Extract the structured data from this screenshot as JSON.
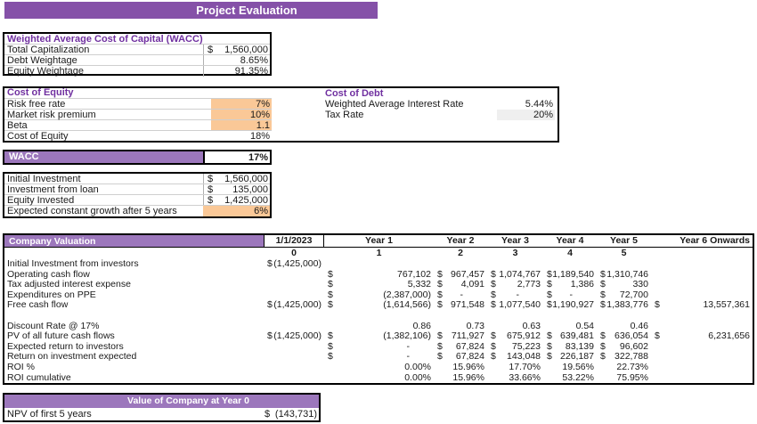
{
  "title": "Project Evaluation",
  "wacc_box": {
    "title": "Weighted Average Cost of Capital (WACC)",
    "rows": [
      {
        "label": "Total Capitalization",
        "prefix": "$",
        "value": "1,560,000"
      },
      {
        "label": "Debt Weightage",
        "prefix": "",
        "value": "8.65%"
      },
      {
        "label": "Equity Weightage",
        "prefix": "",
        "value": "91.35%"
      }
    ]
  },
  "cost_of_equity": {
    "title": "Cost of Equity",
    "rows": [
      {
        "label": "Risk free rate",
        "value": "7%"
      },
      {
        "label": "Market risk premium",
        "value": "10%"
      },
      {
        "label": "Beta",
        "value": "1.1"
      },
      {
        "label": "Cost of Equity",
        "value": "18%"
      }
    ]
  },
  "cost_of_debt": {
    "title": "Cost of Debt",
    "rows": [
      {
        "label": "Weighted Average Interest Rate",
        "value": "5.44%"
      },
      {
        "label": "Tax Rate",
        "value": "20%"
      }
    ]
  },
  "wacc_row": {
    "label": "WACC",
    "value": "17%"
  },
  "investment_box": {
    "rows": [
      {
        "label": "Initial Investment",
        "prefix": "$",
        "value": "1,560,000"
      },
      {
        "label": "Investment from loan",
        "prefix": "$",
        "value": "135,000"
      },
      {
        "label": "Equity Invested",
        "prefix": "$",
        "value": "1,425,000"
      },
      {
        "label": "Expected constant growth after 5 years",
        "prefix": "",
        "value": "6%"
      }
    ]
  },
  "valuation": {
    "title": "Company Valuation",
    "date_header": "1/1/2023",
    "year_headers": [
      "Year 1",
      "Year 2",
      "Year 3",
      "Year 4",
      "Year 5",
      "Year 6 Onwards"
    ],
    "period_indices": [
      "0",
      "1",
      "2",
      "3",
      "4",
      "5"
    ],
    "rows": [
      {
        "label": "Initial Investment from investors",
        "cells": [
          {
            "d": "$",
            "v": "(1,425,000)"
          },
          {
            "d": "",
            "v": ""
          },
          {
            "d": "",
            "v": ""
          },
          {
            "d": "",
            "v": ""
          },
          {
            "d": "",
            "v": ""
          },
          {
            "d": "",
            "v": ""
          },
          {
            "d": "",
            "v": ""
          }
        ]
      },
      {
        "label": "Operating cash flow",
        "cells": [
          {
            "d": "",
            "v": ""
          },
          {
            "d": "$",
            "v": "767,102"
          },
          {
            "d": "$",
            "v": "967,457"
          },
          {
            "d": "$",
            "v": "1,074,767"
          },
          {
            "d": "$",
            "v": "1,189,540"
          },
          {
            "d": "$",
            "v": "1,310,746"
          },
          {
            "d": "",
            "v": ""
          }
        ]
      },
      {
        "label": "Tax adjusted interest expense",
        "cells": [
          {
            "d": "",
            "v": ""
          },
          {
            "d": "$",
            "v": "5,332"
          },
          {
            "d": "$",
            "v": "4,091"
          },
          {
            "d": "$",
            "v": "2,773"
          },
          {
            "d": "$",
            "v": "1,386"
          },
          {
            "d": "$",
            "v": "330"
          },
          {
            "d": "",
            "v": ""
          }
        ]
      },
      {
        "label": "Expenditures on PPE",
        "cells": [
          {
            "d": "",
            "v": ""
          },
          {
            "d": "$",
            "v": "(2,387,000)"
          },
          {
            "d": "$",
            "v": "-"
          },
          {
            "d": "$",
            "v": "-"
          },
          {
            "d": "$",
            "v": "-"
          },
          {
            "d": "$",
            "v": "72,700"
          },
          {
            "d": "",
            "v": ""
          }
        ]
      },
      {
        "label": "Free cash flow",
        "cells": [
          {
            "d": "$",
            "v": "(1,425,000)"
          },
          {
            "d": "$",
            "v": "(1,614,566)"
          },
          {
            "d": "$",
            "v": "971,548"
          },
          {
            "d": "$",
            "v": "1,077,540"
          },
          {
            "d": "$",
            "v": "1,190,927"
          },
          {
            "d": "$",
            "v": "1,383,776"
          },
          {
            "d": "$",
            "v": "13,557,361"
          }
        ]
      },
      {
        "label": "",
        "cells": [
          {
            "d": "",
            "v": ""
          },
          {
            "d": "",
            "v": ""
          },
          {
            "d": "",
            "v": ""
          },
          {
            "d": "",
            "v": ""
          },
          {
            "d": "",
            "v": ""
          },
          {
            "d": "",
            "v": ""
          },
          {
            "d": "",
            "v": ""
          }
        ]
      },
      {
        "label": "Discount Rate @ 17%",
        "cells": [
          {
            "d": "",
            "v": ""
          },
          {
            "d": "",
            "v": "0.86"
          },
          {
            "d": "",
            "v": "0.73"
          },
          {
            "d": "",
            "v": "0.63"
          },
          {
            "d": "",
            "v": "0.54"
          },
          {
            "d": "",
            "v": "0.46"
          },
          {
            "d": "",
            "v": ""
          }
        ]
      },
      {
        "label": "PV of all future cash flows",
        "cells": [
          {
            "d": "$",
            "v": "(1,425,000)"
          },
          {
            "d": "$",
            "v": "(1,382,106)"
          },
          {
            "d": "$",
            "v": "711,927"
          },
          {
            "d": "$",
            "v": "675,912"
          },
          {
            "d": "$",
            "v": "639,481"
          },
          {
            "d": "$",
            "v": "636,054"
          },
          {
            "d": "$",
            "v": "6,231,656"
          }
        ]
      },
      {
        "label": "Expected return to investors",
        "cells": [
          {
            "d": "",
            "v": ""
          },
          {
            "d": "$",
            "v": "-"
          },
          {
            "d": "$",
            "v": "67,824"
          },
          {
            "d": "$",
            "v": "75,223"
          },
          {
            "d": "$",
            "v": "83,139"
          },
          {
            "d": "$",
            "v": "96,602"
          },
          {
            "d": "",
            "v": ""
          }
        ]
      },
      {
        "label": "Return on investment expected",
        "cells": [
          {
            "d": "",
            "v": ""
          },
          {
            "d": "$",
            "v": "-"
          },
          {
            "d": "$",
            "v": "67,824"
          },
          {
            "d": "$",
            "v": "143,048"
          },
          {
            "d": "$",
            "v": "226,187"
          },
          {
            "d": "$",
            "v": "322,788"
          },
          {
            "d": "",
            "v": ""
          }
        ]
      },
      {
        "label": "ROI %",
        "cells": [
          {
            "d": "",
            "v": ""
          },
          {
            "d": "",
            "v": "0.00%"
          },
          {
            "d": "",
            "v": "15.96%"
          },
          {
            "d": "",
            "v": "17.70%"
          },
          {
            "d": "",
            "v": "19.56%"
          },
          {
            "d": "",
            "v": "22.73%"
          },
          {
            "d": "",
            "v": ""
          }
        ]
      },
      {
        "label": "ROI cumulative",
        "cells": [
          {
            "d": "",
            "v": ""
          },
          {
            "d": "",
            "v": "0.00%"
          },
          {
            "d": "",
            "v": "15.96%"
          },
          {
            "d": "",
            "v": "33.66%"
          },
          {
            "d": "",
            "v": "53.22%"
          },
          {
            "d": "",
            "v": "75.95%"
          },
          {
            "d": "",
            "v": ""
          }
        ]
      }
    ]
  },
  "company_value_box": {
    "title": "Value of Company at Year 0",
    "rows": [
      {
        "label": "NPV of first 5 years",
        "prefix": "$",
        "value": "(143,731)"
      }
    ]
  },
  "colors": {
    "banner_purple": "#8551A8",
    "section_banner_purple": "#9C77BC",
    "heading_text_purple": "#7030A0",
    "highlight_orange": "#FAC897",
    "highlight_gray": "#EFEFEF"
  }
}
